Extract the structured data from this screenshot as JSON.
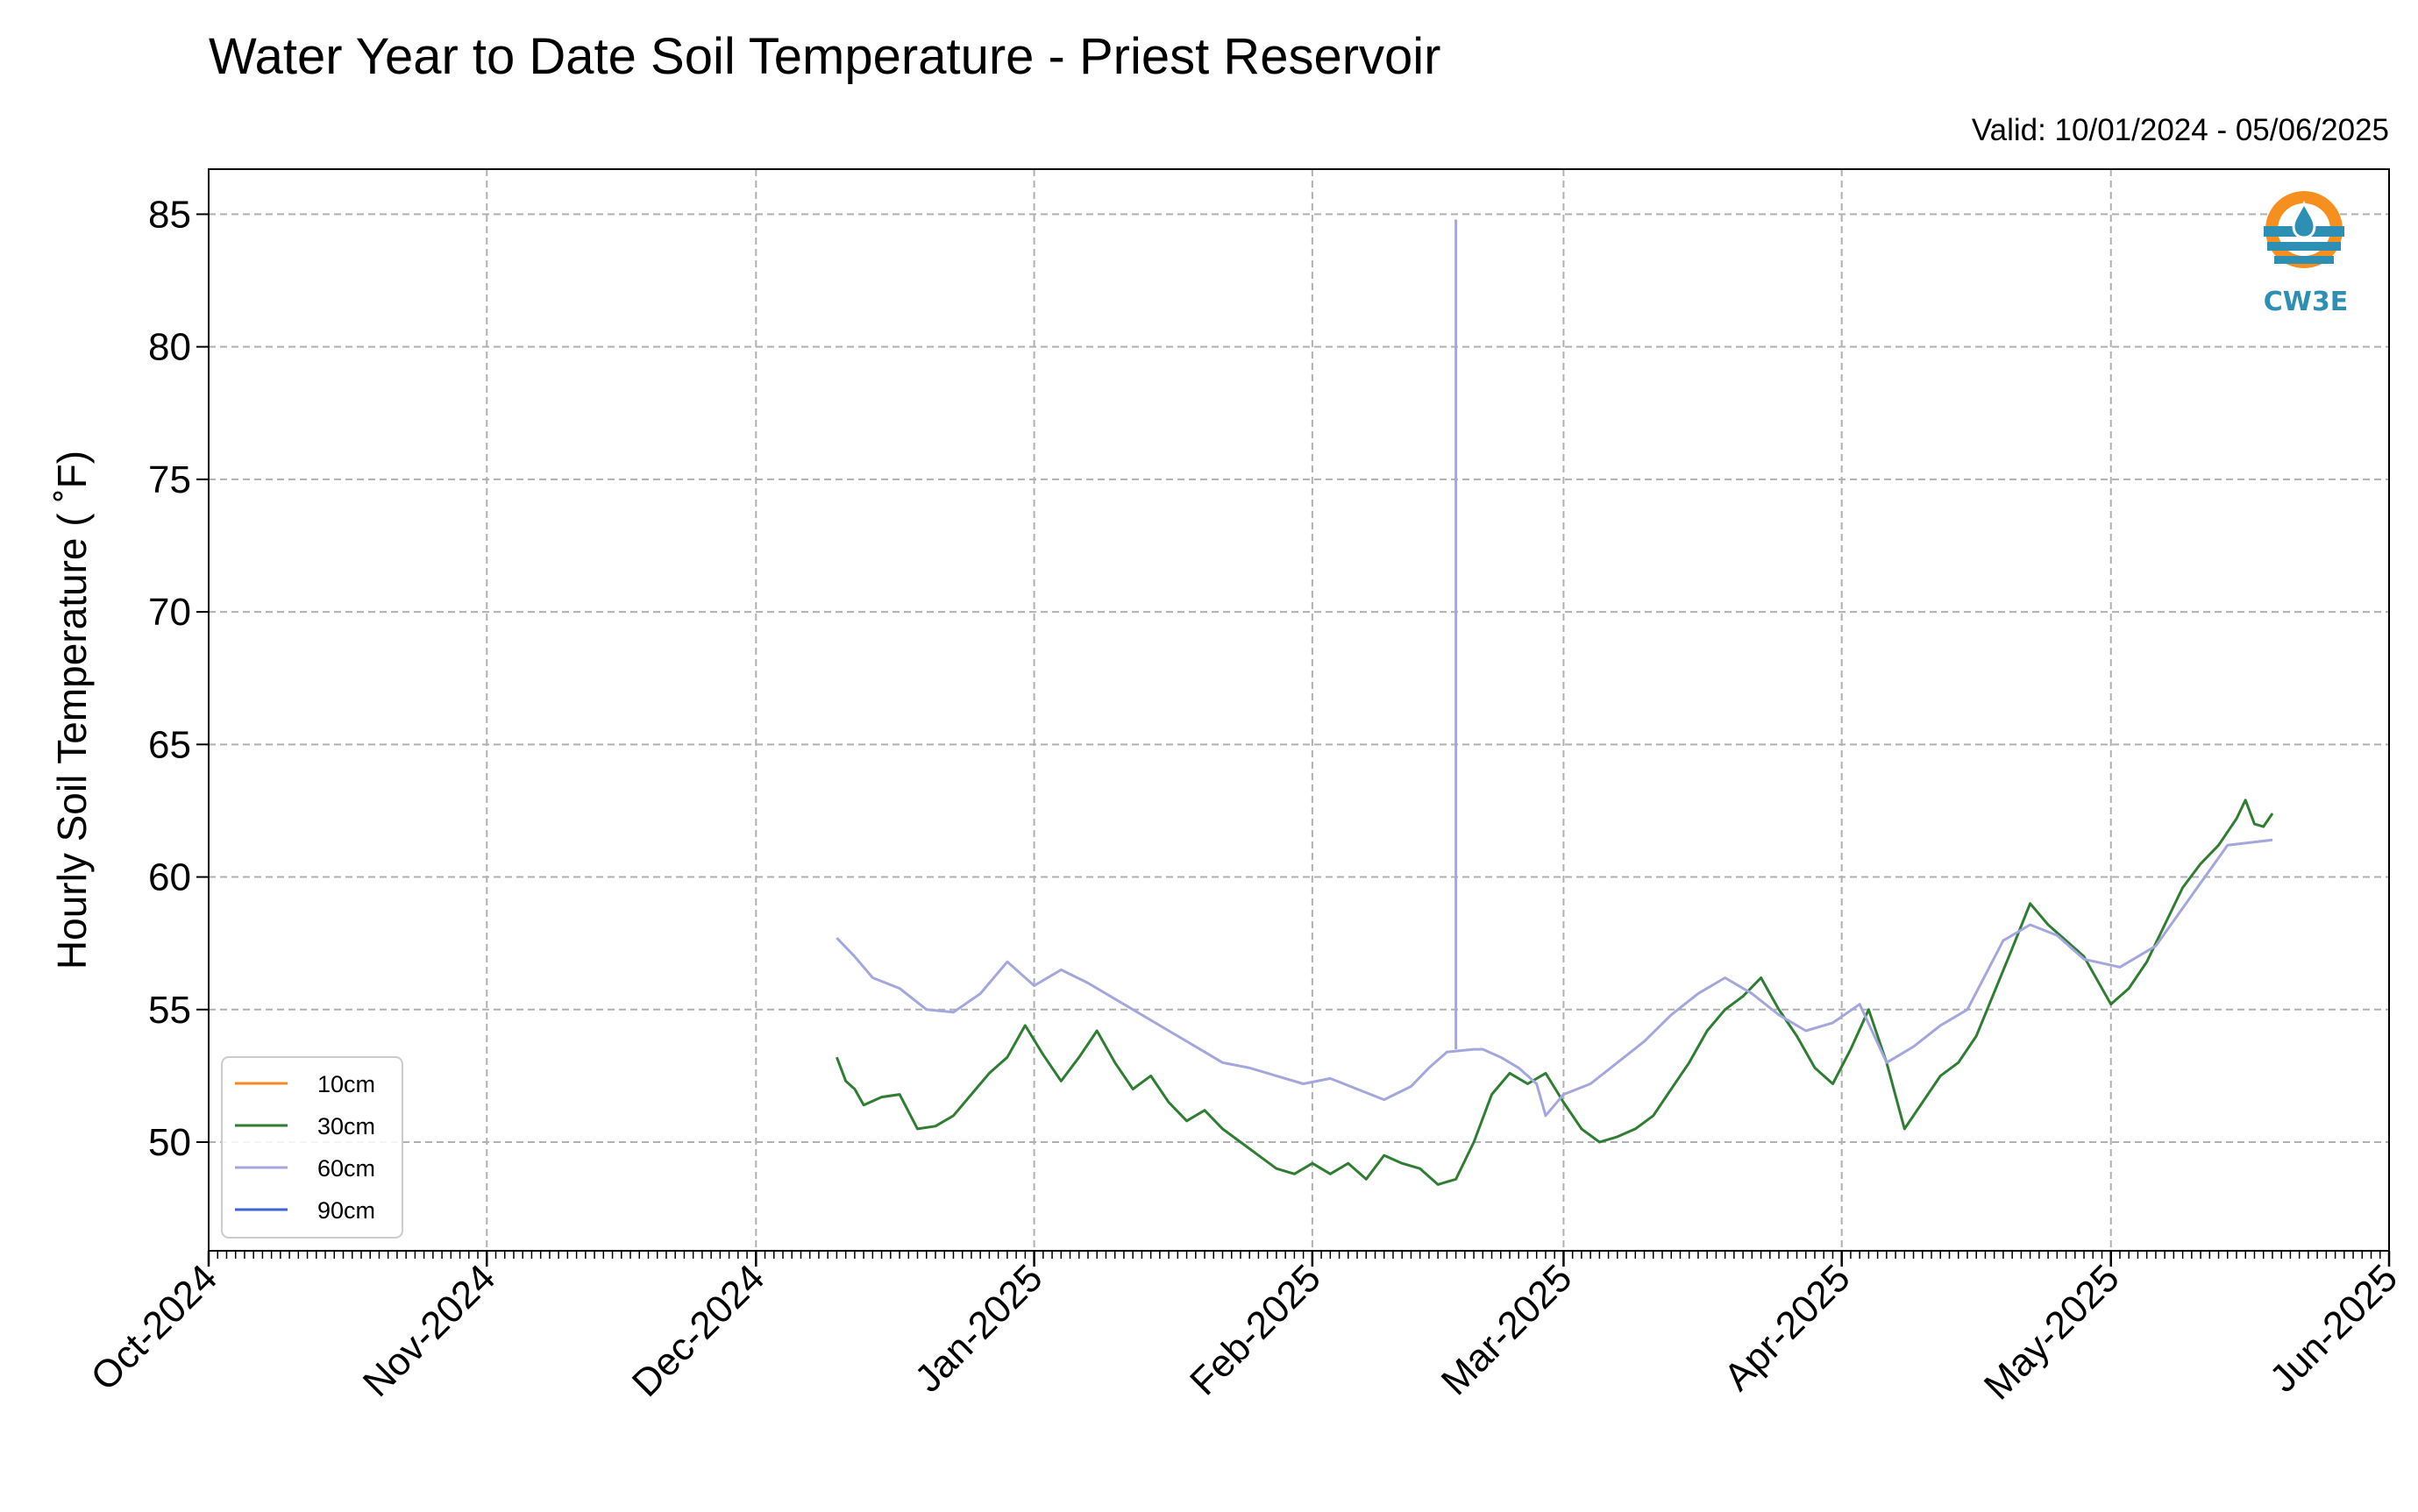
{
  "chart_data": {
    "type": "line",
    "title": "Water Year to Date Soil Temperature - Priest Reservoir",
    "subtitle": "Valid: 10/01/2024 - 05/06/2025",
    "ylabel": "Hourly Soil Temperature ( ˚F)",
    "xlabel": "",
    "x_range": [
      "2024-10-01",
      "2025-06-01"
    ],
    "ylim": [
      45.9,
      86.7
    ],
    "y_ticks": [
      50,
      55,
      60,
      65,
      70,
      75,
      80,
      85
    ],
    "x_ticks": [
      {
        "date": "2024-10-01",
        "label": "Oct-2024"
      },
      {
        "date": "2024-11-01",
        "label": "Nov-2024"
      },
      {
        "date": "2024-12-01",
        "label": "Dec-2024"
      },
      {
        "date": "2025-01-01",
        "label": "Jan-2025"
      },
      {
        "date": "2025-02-01",
        "label": "Feb-2025"
      },
      {
        "date": "2025-03-01",
        "label": "Mar-2025"
      },
      {
        "date": "2025-04-01",
        "label": "Apr-2025"
      },
      {
        "date": "2025-05-01",
        "label": "May-2025"
      },
      {
        "date": "2025-06-01",
        "label": "Jun-2025"
      }
    ],
    "grid": true,
    "legend_position": "lower-left",
    "series": [
      {
        "name": "10cm",
        "color": "#f5891f",
        "points": []
      },
      {
        "name": "30cm",
        "color": "#2f7d32",
        "points": [
          [
            "2024-12-10",
            53.2
          ],
          [
            "2024-12-11",
            52.3
          ],
          [
            "2024-12-12",
            52.0
          ],
          [
            "2024-12-13",
            51.4
          ],
          [
            "2024-12-15",
            51.7
          ],
          [
            "2024-12-17",
            51.8
          ],
          [
            "2024-12-19",
            50.5
          ],
          [
            "2024-12-21",
            50.6
          ],
          [
            "2024-12-23",
            51.0
          ],
          [
            "2024-12-25",
            51.8
          ],
          [
            "2024-12-27",
            52.6
          ],
          [
            "2024-12-29",
            53.2
          ],
          [
            "2024-12-31",
            54.4
          ],
          [
            "2025-01-02",
            53.3
          ],
          [
            "2025-01-04",
            52.3
          ],
          [
            "2025-01-06",
            53.2
          ],
          [
            "2025-01-08",
            54.2
          ],
          [
            "2025-01-10",
            53.0
          ],
          [
            "2025-01-12",
            52.0
          ],
          [
            "2025-01-14",
            52.5
          ],
          [
            "2025-01-16",
            51.5
          ],
          [
            "2025-01-18",
            50.8
          ],
          [
            "2025-01-20",
            51.2
          ],
          [
            "2025-01-22",
            50.5
          ],
          [
            "2025-01-24",
            50.0
          ],
          [
            "2025-01-26",
            49.5
          ],
          [
            "2025-01-28",
            49.0
          ],
          [
            "2025-01-30",
            48.8
          ],
          [
            "2025-02-01",
            49.2
          ],
          [
            "2025-02-03",
            48.8
          ],
          [
            "2025-02-05",
            49.2
          ],
          [
            "2025-02-07",
            48.6
          ],
          [
            "2025-02-09",
            49.5
          ],
          [
            "2025-02-11",
            49.2
          ],
          [
            "2025-02-13",
            49.0
          ],
          [
            "2025-02-15",
            48.4
          ],
          [
            "2025-02-17",
            48.6
          ],
          [
            "2025-02-19",
            50.0
          ],
          [
            "2025-02-21",
            51.8
          ],
          [
            "2025-02-23",
            52.6
          ],
          [
            "2025-02-25",
            52.2
          ],
          [
            "2025-02-27",
            52.6
          ],
          [
            "2025-03-01",
            51.5
          ],
          [
            "2025-03-03",
            50.5
          ],
          [
            "2025-03-05",
            50.0
          ],
          [
            "2025-03-07",
            50.2
          ],
          [
            "2025-03-09",
            50.5
          ],
          [
            "2025-03-11",
            51.0
          ],
          [
            "2025-03-13",
            52.0
          ],
          [
            "2025-03-15",
            53.0
          ],
          [
            "2025-03-17",
            54.2
          ],
          [
            "2025-03-19",
            55.0
          ],
          [
            "2025-03-21",
            55.5
          ],
          [
            "2025-03-23",
            56.2
          ],
          [
            "2025-03-25",
            55.0
          ],
          [
            "2025-03-27",
            54.0
          ],
          [
            "2025-03-29",
            52.8
          ],
          [
            "2025-03-31",
            52.2
          ],
          [
            "2025-04-02",
            53.5
          ],
          [
            "2025-04-04",
            55.0
          ],
          [
            "2025-04-06",
            53.0
          ],
          [
            "2025-04-08",
            50.5
          ],
          [
            "2025-04-10",
            51.5
          ],
          [
            "2025-04-12",
            52.5
          ],
          [
            "2025-04-14",
            53.0
          ],
          [
            "2025-04-16",
            54.0
          ],
          [
            "2025-04-20",
            57.3
          ],
          [
            "2025-04-22",
            59.0
          ],
          [
            "2025-04-24",
            58.2
          ],
          [
            "2025-04-26",
            57.6
          ],
          [
            "2025-04-28",
            57.0
          ],
          [
            "2025-05-01",
            55.2
          ],
          [
            "2025-05-03",
            55.8
          ],
          [
            "2025-05-05",
            56.8
          ],
          [
            "2025-05-07",
            58.2
          ],
          [
            "2025-05-09",
            59.6
          ],
          [
            "2025-05-11",
            60.5
          ],
          [
            "2025-05-13",
            61.2
          ],
          [
            "2025-05-15",
            62.2
          ],
          [
            "2025-05-16",
            62.9
          ],
          [
            "2025-05-17",
            62.0
          ],
          [
            "2025-05-18",
            61.9
          ],
          [
            "2025-05-19",
            62.4
          ]
        ]
      },
      {
        "name": "60cm",
        "color": "#a4a7dd",
        "points": [
          [
            "2024-12-10",
            57.7
          ],
          [
            "2024-12-12",
            57.0
          ],
          [
            "2024-12-14",
            56.2
          ],
          [
            "2024-12-17",
            55.8
          ],
          [
            "2024-12-20",
            55.0
          ],
          [
            "2024-12-23",
            54.9
          ],
          [
            "2024-12-26",
            55.6
          ],
          [
            "2024-12-29",
            56.8
          ],
          [
            "2025-01-01",
            55.9
          ],
          [
            "2025-01-04",
            56.5
          ],
          [
            "2025-01-07",
            56.0
          ],
          [
            "2025-01-10",
            55.4
          ],
          [
            "2025-01-13",
            54.8
          ],
          [
            "2025-01-16",
            54.2
          ],
          [
            "2025-01-19",
            53.6
          ],
          [
            "2025-01-22",
            53.0
          ],
          [
            "2025-01-25",
            52.8
          ],
          [
            "2025-01-28",
            52.5
          ],
          [
            "2025-01-31",
            52.2
          ],
          [
            "2025-02-03",
            52.4
          ],
          [
            "2025-02-06",
            52.0
          ],
          [
            "2025-02-09",
            51.6
          ],
          [
            "2025-02-12",
            52.1
          ],
          [
            "2025-02-14",
            52.8
          ],
          [
            "2025-02-16",
            53.4
          ],
          [
            "2025-02-19",
            53.5
          ],
          [
            "2025-02-20",
            53.5
          ],
          [
            "2025-02-22",
            53.2
          ],
          [
            "2025-02-24",
            52.8
          ],
          [
            "2025-02-26",
            52.2
          ],
          [
            "2025-02-27",
            51.0
          ],
          [
            "2025-03-01",
            51.8
          ],
          [
            "2025-03-04",
            52.2
          ],
          [
            "2025-03-07",
            53.0
          ],
          [
            "2025-03-10",
            53.8
          ],
          [
            "2025-03-13",
            54.8
          ],
          [
            "2025-03-16",
            55.6
          ],
          [
            "2025-03-19",
            56.2
          ],
          [
            "2025-03-22",
            55.6
          ],
          [
            "2025-03-25",
            54.8
          ],
          [
            "2025-03-28",
            54.2
          ],
          [
            "2025-03-31",
            54.5
          ],
          [
            "2025-04-03",
            55.2
          ],
          [
            "2025-04-06",
            53.0
          ],
          [
            "2025-04-09",
            53.6
          ],
          [
            "2025-04-12",
            54.4
          ],
          [
            "2025-04-15",
            55.0
          ],
          [
            "2025-04-19",
            57.6
          ],
          [
            "2025-04-22",
            58.2
          ],
          [
            "2025-04-25",
            57.8
          ],
          [
            "2025-04-28",
            56.9
          ],
          [
            "2025-05-02",
            56.6
          ],
          [
            "2025-05-06",
            57.4
          ],
          [
            "2025-05-10",
            59.3
          ],
          [
            "2025-05-14",
            61.2
          ],
          [
            "2025-05-19",
            61.4
          ]
        ]
      },
      {
        "name": "90cm",
        "color": "#3d63d4",
        "points": []
      }
    ],
    "spike": {
      "series": "60cm",
      "date": "2025-02-17",
      "value": 84.8
    }
  },
  "logo": {
    "text": "CW3E",
    "accent": "#f5901f",
    "brand": "#2e8fb5"
  }
}
